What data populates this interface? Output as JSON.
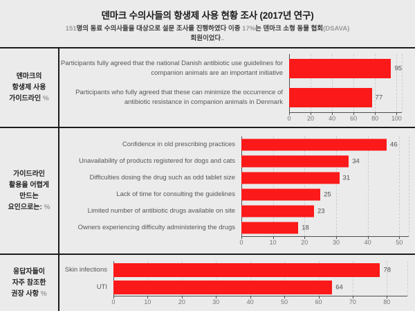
{
  "colors": {
    "background": "#ebebeb",
    "bar_red": "#fb1919",
    "border_black": "#1a1a1a",
    "muted_gray": "#999999"
  },
  "header": {
    "title": "덴마크 수의사들의 항생제 사용 현황 조사 (2017년 연구)",
    "subtitle_line1_parts": [
      {
        "text": "151",
        "muted": true
      },
      {
        "text": "명의 동료 수의사들을 대상으로 설문 조사를 진행하였다 이중 ",
        "muted": false
      },
      {
        "text": "17%",
        "muted": true
      },
      {
        "text": "는 덴마크 소형 동물 협회",
        "muted": false
      },
      {
        "text": "(DSAVA)",
        "muted": true
      }
    ],
    "subtitle_line2_parts": [
      {
        "text": "회원이었다",
        "muted": false
      },
      {
        "text": "..",
        "muted": true
      }
    ]
  },
  "sections": [
    {
      "title_lines": [
        "덴마크의",
        "항생제 사용",
        "가이드라인"
      ],
      "title_suffix": "%"
    },
    {
      "title_lines": [
        "가이드라인",
        "활용을 어렵게",
        "만드는",
        "요인으로는:"
      ],
      "title_suffix": "%"
    },
    {
      "title_lines": [
        "응답자들이",
        "자주 참조한",
        "권장 사항"
      ],
      "title_suffix": "%"
    }
  ],
  "chart_data": [
    {
      "type": "bar",
      "orientation": "horizontal",
      "title": "덴마크의 항생제 사용 가이드라인 %",
      "categories": [
        "Participants fully agreed that the national Danish antibiotic use guidelines for companion animals are an important initiative",
        "Participants who fully agreed that these can minimize the occurrence of antibiotic resistance in companion animals in Denmark"
      ],
      "values": [
        95,
        77
      ],
      "xlim": [
        0,
        105
      ],
      "xticks": [
        0,
        20,
        40,
        60,
        80,
        100
      ],
      "bar_color": "#fb1919",
      "grid": "dashed-vertical",
      "legend": "none"
    },
    {
      "type": "bar",
      "orientation": "horizontal",
      "title": "가이드라인 활용을 어렵게 만드는 요인으로는: %",
      "categories": [
        "Confidence in old prescribing practices",
        "Unavailability of products registered for dogs and cats",
        "Difficulties dosing the drug such as odd tablet size",
        "Lack of time for consulting the guidelines",
        "Limited number of antibiotic drugs available on site",
        "Owners experiencing difficulty administering the drugs"
      ],
      "values": [
        46,
        34,
        31,
        25,
        23,
        18
      ],
      "xlim": [
        0,
        53
      ],
      "xticks": [
        0,
        10,
        20,
        30,
        40,
        50
      ],
      "bar_color": "#fb1919",
      "grid": "dashed-vertical",
      "legend": "none"
    },
    {
      "type": "bar",
      "orientation": "horizontal",
      "title": "응답자들이 자주 참조한 권장 사항 %",
      "categories": [
        "Skin infections",
        "UTI"
      ],
      "values": [
        78,
        64
      ],
      "xlim": [
        0,
        86
      ],
      "xticks": [
        0,
        10,
        20,
        30,
        40,
        50,
        60,
        70,
        80
      ],
      "bar_color": "#fb1919",
      "grid": "dashed-vertical",
      "legend": "none"
    }
  ]
}
